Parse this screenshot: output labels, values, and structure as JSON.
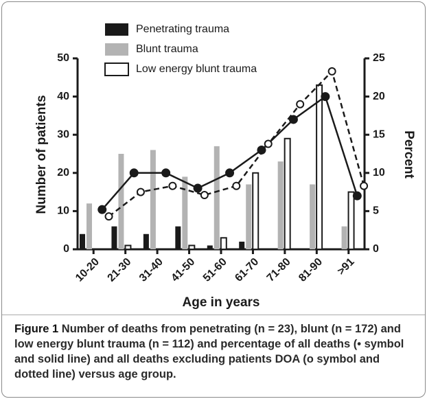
{
  "chart_data": {
    "type": "bar",
    "categories": [
      "10-20",
      "21-30",
      "31-40",
      "41-50",
      "51-60",
      "61-70",
      "71-80",
      "81-90",
      ">91"
    ],
    "series": [
      {
        "name": "Penetrating trauma",
        "type": "bar",
        "color": "#1a1a1a",
        "values": [
          4,
          6,
          4,
          6,
          1,
          2,
          0,
          0,
          0
        ]
      },
      {
        "name": "Blunt trauma",
        "type": "bar",
        "color": "#b3b3b3",
        "values": [
          12,
          25,
          26,
          19,
          27,
          17,
          23,
          17,
          6
        ]
      },
      {
        "name": "Low energy blunt trauma",
        "type": "bar",
        "color": "#ffffff",
        "values": [
          0,
          1,
          0,
          1,
          3,
          20,
          29,
          43,
          15
        ]
      },
      {
        "type": "line",
        "axis": "y2",
        "color": "#1a1a1a",
        "line_style": "solid",
        "marker": "filled",
        "values": [
          5.2,
          10,
          10,
          8,
          10,
          13,
          17,
          20,
          7
        ]
      },
      {
        "type": "line",
        "axis": "y2",
        "color": "#1a1a1a",
        "line_style": "dashed",
        "marker": "open",
        "values": [
          4.3,
          7.5,
          8.3,
          7.1,
          8.3,
          13.8,
          19,
          23.3,
          8.3
        ]
      }
    ],
    "ylabel": "Number of patients",
    "y2label": "Percent",
    "xlabel": "Age in years",
    "ylim": [
      0,
      50
    ],
    "yticks": [
      0,
      10,
      20,
      30,
      40,
      50
    ],
    "y2lim": [
      0,
      25
    ],
    "y2ticks": [
      0,
      5,
      10,
      15,
      20,
      25
    ],
    "caption_label": "Figure 1",
    "caption": "Number of deaths from penetrating (n = 23), blunt (n = 172) and low energy blunt trauma (n = 112) and percentage of all deaths (• symbol and solid line) and all deaths excluding patients DOA (o symbol and dotted line) versus age group."
  }
}
